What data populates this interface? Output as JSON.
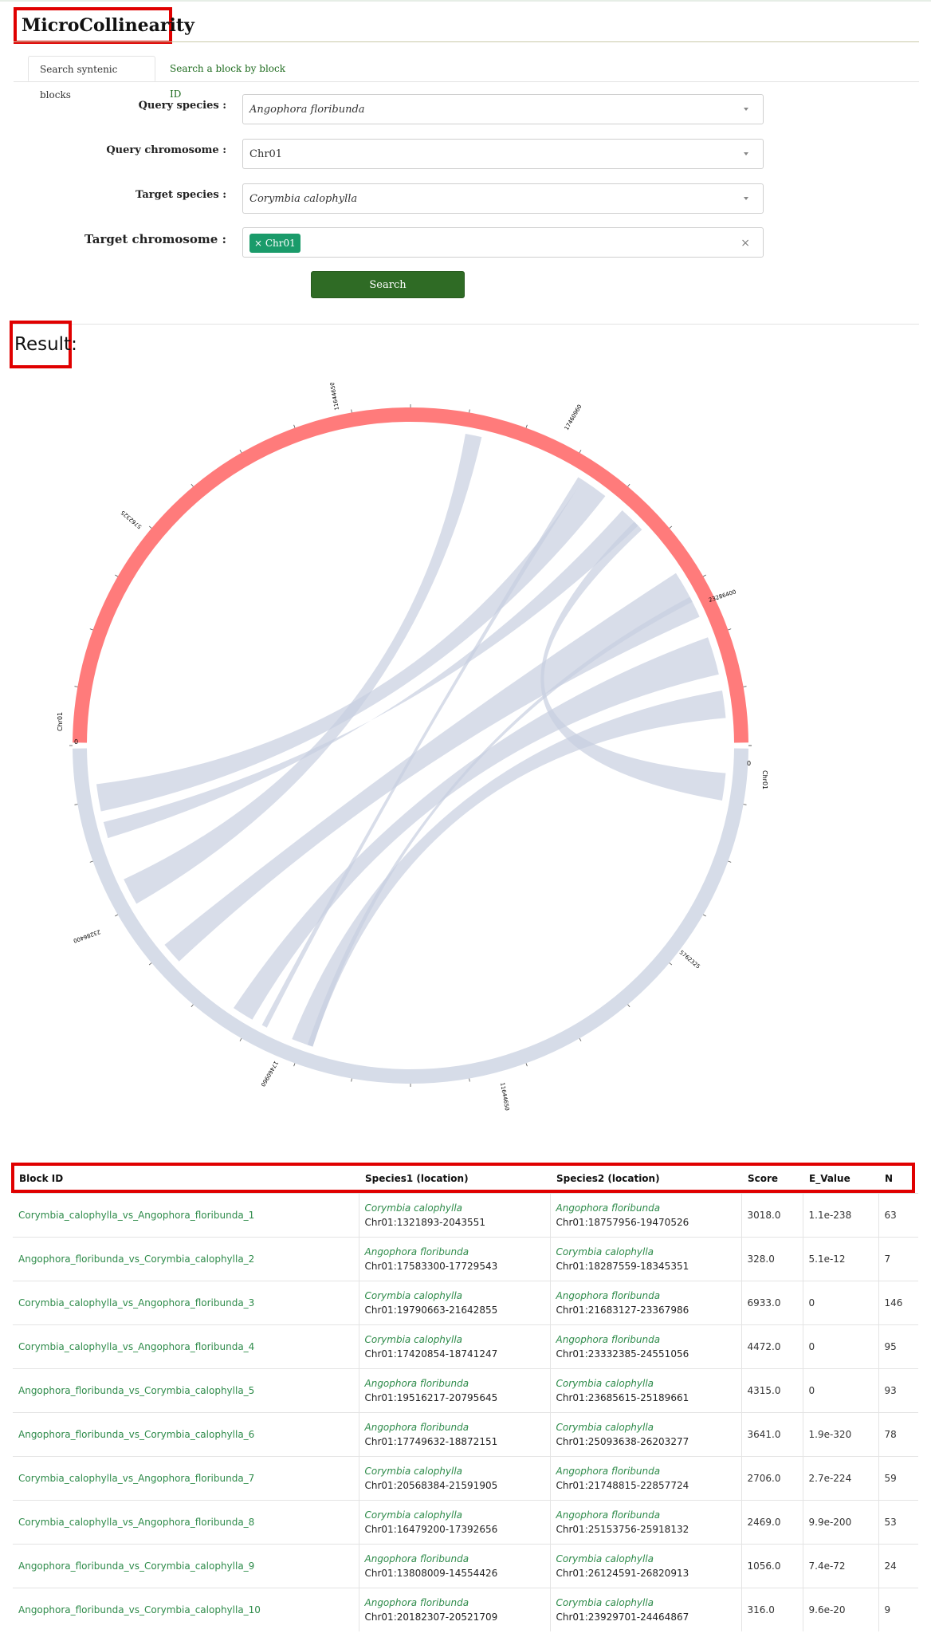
{
  "app_title": "MicroCollinearity",
  "tabs": [
    {
      "label": "Search syntenic blocks"
    },
    {
      "label": "Search a block by block ID"
    }
  ],
  "form": {
    "query_species": {
      "label": "Query species :",
      "value": "Angophora floribunda"
    },
    "query_chromosome": {
      "label": "Query chromosome :",
      "value": "Chr01"
    },
    "target_species": {
      "label": "Target species :",
      "value": "Corymbia calophylla"
    },
    "target_chromosome": {
      "label": "Target chromosome :",
      "tag": "× Chr01",
      "clear": "×"
    },
    "search_label": "Search"
  },
  "result_label": "Result:",
  "circos": {
    "top_color": "#ff7b7b",
    "bottom_color": "#d6dce8",
    "ribbon_color": "#c7cfe0",
    "labels": {
      "left_chr": "Chr01",
      "left_zero": "0",
      "right_chr": "Chr01",
      "right_zero": "0",
      "t1": "5762325",
      "t2": "11644650",
      "t3": "17460960",
      "t4": "23286400",
      "b1": "5762325",
      "b2": "11644650",
      "b3": "17460960",
      "b4": "23286400"
    }
  },
  "table": {
    "headers": [
      "Block ID",
      "Species1 (location)",
      "Species2 (location)",
      "Score",
      "E_Value",
      "N"
    ],
    "rows": [
      {
        "id": "Corymbia_calophylla_vs_Angophora_floribunda_1",
        "s1": "Corymbia calophylla",
        "l1": "Chr01:1321893-2043551",
        "s2": "Angophora floribunda",
        "l2": "Chr01:18757956-19470526",
        "score": "3018.0",
        "e": "1.1e-238",
        "n": "63"
      },
      {
        "id": "Angophora_floribunda_vs_Corymbia_calophylla_2",
        "s1": "Angophora floribunda",
        "l1": "Chr01:17583300-17729543",
        "s2": "Corymbia calophylla",
        "l2": "Chr01:18287559-18345351",
        "score": "328.0",
        "e": "5.1e-12",
        "n": "7"
      },
      {
        "id": "Corymbia_calophylla_vs_Angophora_floribunda_3",
        "s1": "Corymbia calophylla",
        "l1": "Chr01:19790663-21642855",
        "s2": "Angophora floribunda",
        "l2": "Chr01:21683127-23367986",
        "score": "6933.0",
        "e": "0",
        "n": "146"
      },
      {
        "id": "Corymbia_calophylla_vs_Angophora_floribunda_4",
        "s1": "Corymbia calophylla",
        "l1": "Chr01:17420854-18741247",
        "s2": "Angophora floribunda",
        "l2": "Chr01:23332385-24551056",
        "score": "4472.0",
        "e": "0",
        "n": "95"
      },
      {
        "id": "Angophora_floribunda_vs_Corymbia_calophylla_5",
        "s1": "Angophora floribunda",
        "l1": "Chr01:19516217-20795645",
        "s2": "Corymbia calophylla",
        "l2": "Chr01:23685615-25189661",
        "score": "4315.0",
        "e": "0",
        "n": "93"
      },
      {
        "id": "Angophora_floribunda_vs_Corymbia_calophylla_6",
        "s1": "Angophora floribunda",
        "l1": "Chr01:17749632-18872151",
        "s2": "Corymbia calophylla",
        "l2": "Chr01:25093638-26203277",
        "score": "3641.0",
        "e": "1.9e-320",
        "n": "78"
      },
      {
        "id": "Corymbia_calophylla_vs_Angophora_floribunda_7",
        "s1": "Corymbia calophylla",
        "l1": "Chr01:20568384-21591905",
        "s2": "Angophora floribunda",
        "l2": "Chr01:21748815-22857724",
        "score": "2706.0",
        "e": "2.7e-224",
        "n": "59"
      },
      {
        "id": "Corymbia_calophylla_vs_Angophora_floribunda_8",
        "s1": "Corymbia calophylla",
        "l1": "Chr01:16479200-17392656",
        "s2": "Angophora floribunda",
        "l2": "Chr01:25153756-25918132",
        "score": "2469.0",
        "e": "9.9e-200",
        "n": "53"
      },
      {
        "id": "Angophora_floribunda_vs_Corymbia_calophylla_9",
        "s1": "Angophora floribunda",
        "l1": "Chr01:13808009-14554426",
        "s2": "Corymbia calophylla",
        "l2": "Chr01:26124591-26820913",
        "score": "1056.0",
        "e": "7.4e-72",
        "n": "24"
      },
      {
        "id": "Angophora_floribunda_vs_Corymbia_calophylla_10",
        "s1": "Angophora floribunda",
        "l1": "Chr01:20182307-20521709",
        "s2": "Corymbia calophylla",
        "l2": "Chr01:23929701-24464867",
        "score": "316.0",
        "e": "9.6e-20",
        "n": "9"
      }
    ]
  }
}
